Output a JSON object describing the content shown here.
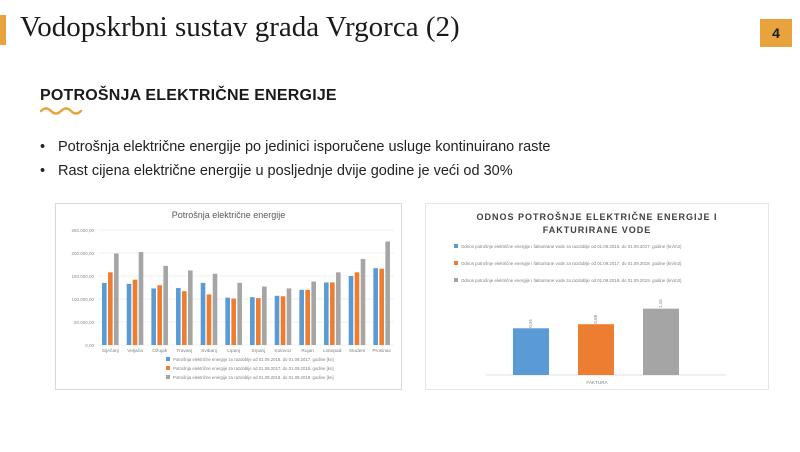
{
  "slide": {
    "title": "Vodopskrbni sustav grada Vrgorca (2)",
    "page_number": "4",
    "section_heading": "POTROŠNJA ELEKTRIČNE ENERGIJE",
    "bullets": [
      "Potrošnja električne energije po jedinici isporučene usluge kontinuirano raste",
      "Rast cijena električne energije u posljednje dvije godine je veći od 30%"
    ],
    "colors": {
      "accent": "#e8a33c",
      "blue": "#5b9bd5",
      "orange": "#ed7d31",
      "gray": "#a5a5a5"
    }
  },
  "chart_data": [
    {
      "type": "bar",
      "title": "Potrošnja električne energije",
      "ylim": [
        0,
        250000
      ],
      "yticks": [
        "0,00",
        "50.000,00",
        "100.000,00",
        "150.000,00",
        "200.000,00",
        "250.000,00"
      ],
      "categories": [
        "Siječanj",
        "Veljača",
        "Ožujak",
        "Travanj",
        "Svibanj",
        "Lipanj",
        "Srpanj",
        "Kolovoz",
        "Rujan",
        "Listopad",
        "Studeni",
        "Prosinac"
      ],
      "series": [
        {
          "name": "Potrošnja električne energije za razdoblje od 01.09.2016. do 01.09.2017. godine [kn]",
          "values": [
            135000,
            133000,
            123000,
            124000,
            135000,
            103000,
            104000,
            107000,
            120000,
            136000,
            150000,
            167000
          ]
        },
        {
          "name": "Potrošnja električne energije za razdoblje od 01.09.2017. do 01.09.2018. godine [kn]",
          "values": [
            158000,
            142000,
            130000,
            117000,
            110000,
            101000,
            102000,
            106000,
            120000,
            136000,
            158000,
            166000
          ]
        },
        {
          "name": "Potrošnja električne energije za razdoblje od 01.09.2018. do 01.09.2019. godine [kn]",
          "values": [
            199000,
            202000,
            172000,
            162000,
            155000,
            135000,
            127000,
            123000,
            138000,
            158000,
            187000,
            225000
          ]
        }
      ]
    },
    {
      "type": "bar",
      "title": "ODNOS POTROŠNJE ELEKTRIČNE ENERGIJE I FAKTURIRANE VODE",
      "categories": [
        "FAKTURA"
      ],
      "series": [
        {
          "name": "Odnos potrošnje električne energije i fakturirane vode za razdoblje od 01.09.2016. do 01.09.2017. godine (kn/m3)",
          "values": [
            0.81
          ]
        },
        {
          "name": "Odnos potrošnje električne energije i fakturirane vode za razdoblje od 01.09.2017. do 01.09.2018. godine (kn/m3)",
          "values": [
            0.88
          ]
        },
        {
          "name": "Odnos potrošnje električne energije i fakturirane vode za razdoblje od 01.09.2018. do 01.09.2019. godine (kn/m3)",
          "values": [
            1.15
          ]
        }
      ]
    }
  ]
}
